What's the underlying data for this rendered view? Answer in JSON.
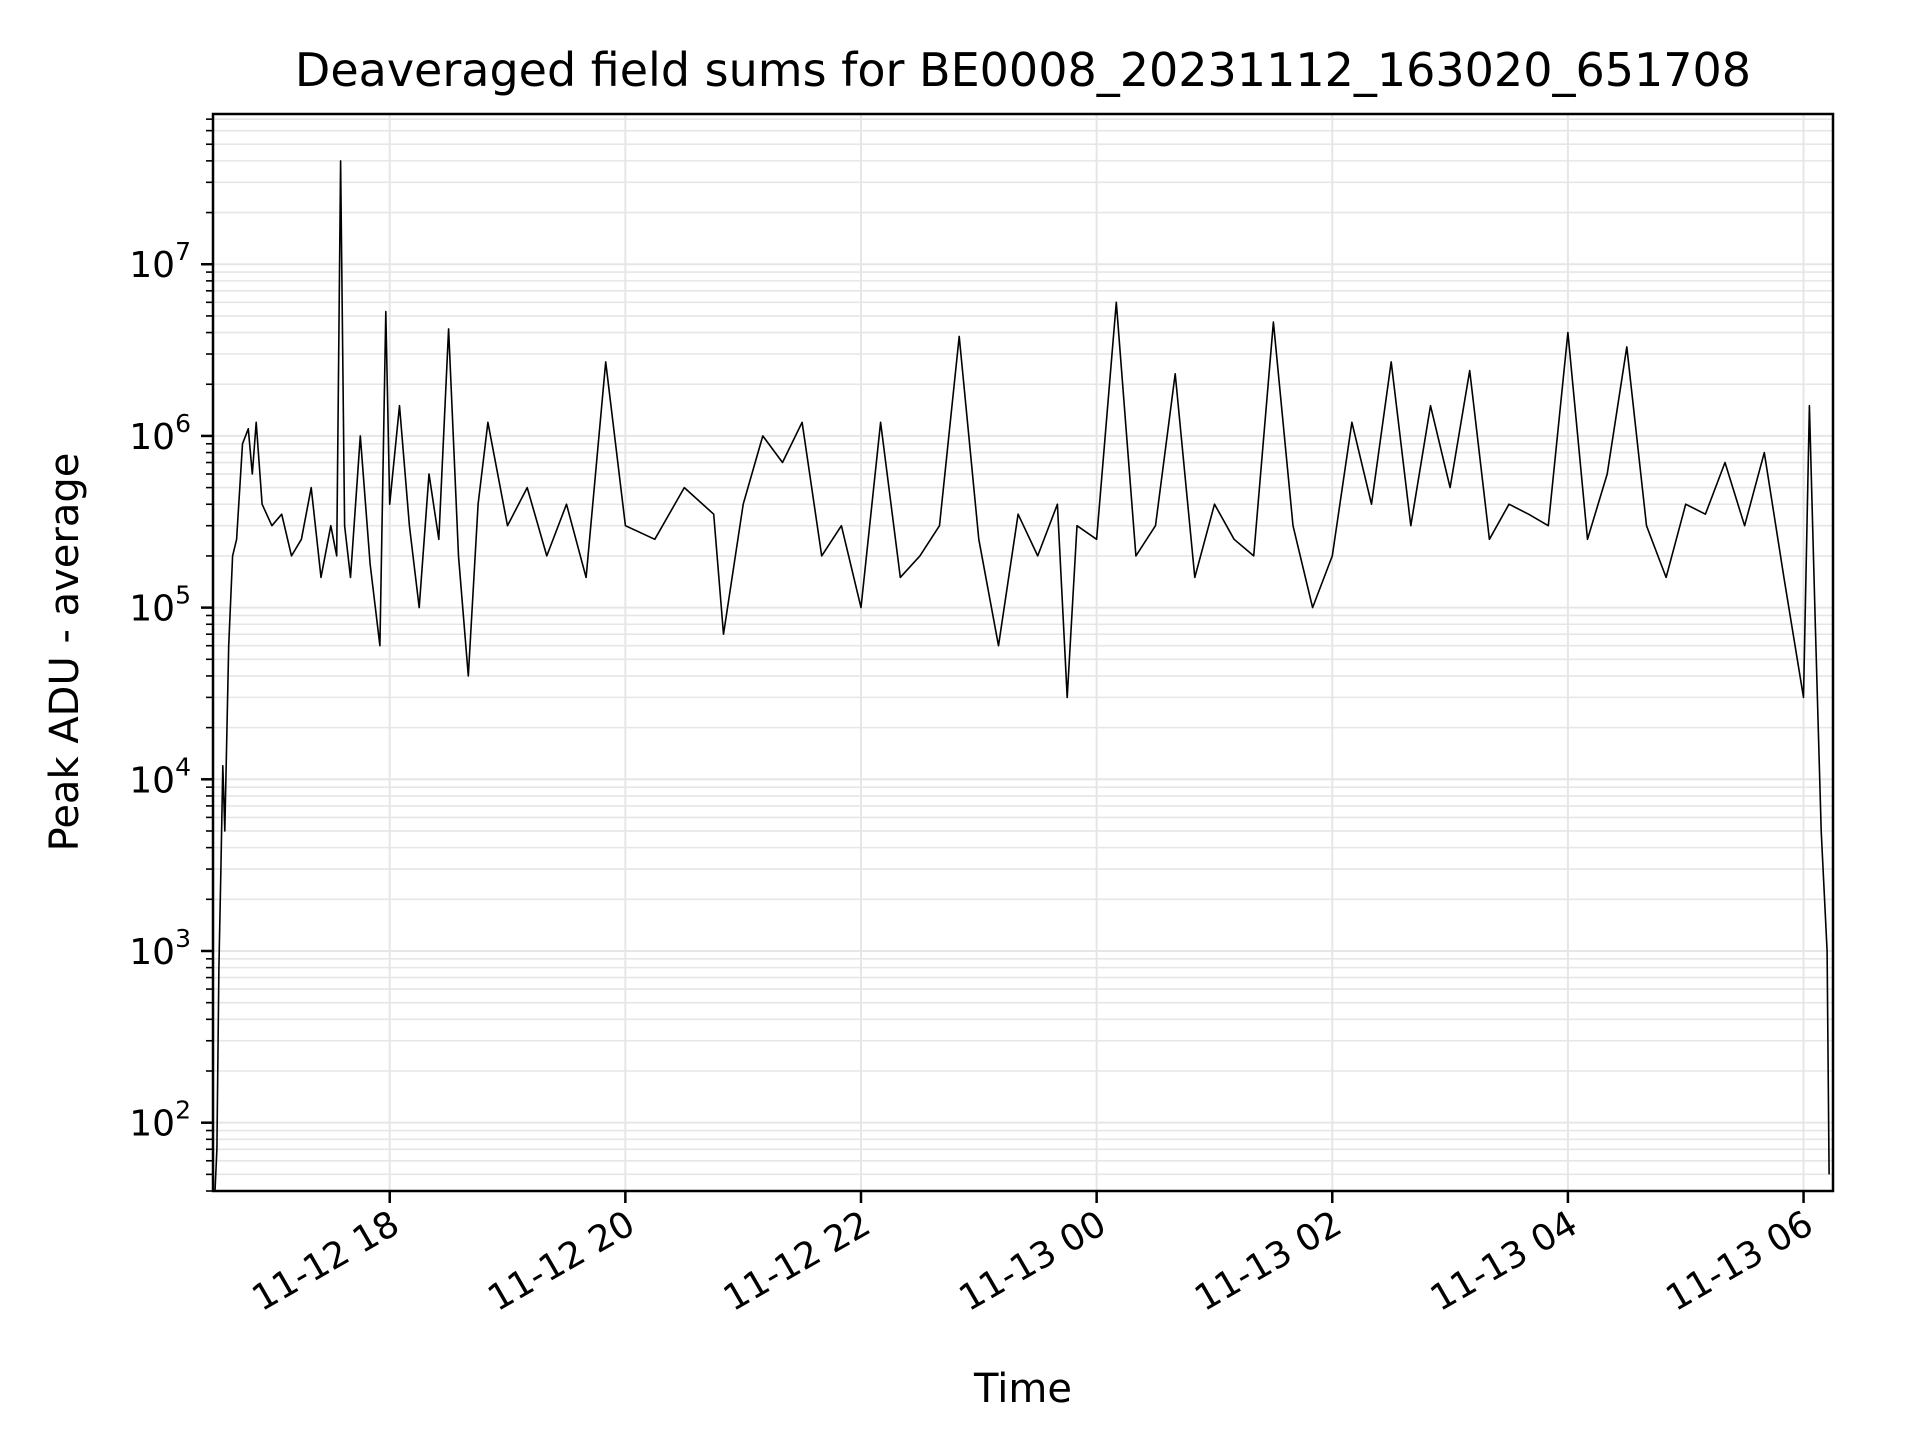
{
  "chart_data": {
    "type": "line",
    "title": "Deaveraged field sums for BE0008_20231112_163020_651708",
    "xlabel": "Time",
    "ylabel": "Peak ADU - average",
    "yscale": "log",
    "ylim": [
      40,
      75000000
    ],
    "xlim": [
      "2023-11-12 16:30",
      "2023-11-13 06:15"
    ],
    "grid": true,
    "colors": {
      "line": "#000000",
      "grid": "#e6e6e6",
      "axes": "#000000"
    },
    "x_ticks": [
      {
        "label": "11-12 18",
        "value": "2023-11-12 18:00"
      },
      {
        "label": "11-12 20",
        "value": "2023-11-12 20:00"
      },
      {
        "label": "11-12 22",
        "value": "2023-11-12 22:00"
      },
      {
        "label": "11-13 00",
        "value": "2023-11-13 00:00"
      },
      {
        "label": "11-13 02",
        "value": "2023-11-13 02:00"
      },
      {
        "label": "11-13 04",
        "value": "2023-11-13 04:00"
      },
      {
        "label": "11-13 06",
        "value": "2023-11-13 06:00"
      }
    ],
    "y_ticks": [
      {
        "base": "10",
        "exp": "2",
        "value": 100
      },
      {
        "base": "10",
        "exp": "3",
        "value": 1000
      },
      {
        "base": "10",
        "exp": "4",
        "value": 10000
      },
      {
        "base": "10",
        "exp": "5",
        "value": 100000
      },
      {
        "base": "10",
        "exp": "6",
        "value": 1000000
      },
      {
        "base": "10",
        "exp": "7",
        "value": 10000000
      }
    ],
    "series": [
      {
        "color": "#000000",
        "points": [
          [
            "2023-11-12 16:31",
            40
          ],
          [
            "2023-11-12 16:32",
            70
          ],
          [
            "2023-11-12 16:33",
            800
          ],
          [
            "2023-11-12 16:34",
            3000
          ],
          [
            "2023-11-12 16:35",
            12000
          ],
          [
            "2023-11-12 16:36",
            5000
          ],
          [
            "2023-11-12 16:38",
            60000
          ],
          [
            "2023-11-12 16:40",
            200000
          ],
          [
            "2023-11-12 16:42",
            250000
          ],
          [
            "2023-11-12 16:45",
            900000
          ],
          [
            "2023-11-12 16:48",
            1100000
          ],
          [
            "2023-11-12 16:50",
            600000
          ],
          [
            "2023-11-12 16:52",
            1200000
          ],
          [
            "2023-11-12 16:55",
            400000
          ],
          [
            "2023-11-12 17:00",
            300000
          ],
          [
            "2023-11-12 17:05",
            350000
          ],
          [
            "2023-11-12 17:10",
            200000
          ],
          [
            "2023-11-12 17:15",
            250000
          ],
          [
            "2023-11-12 17:20",
            500000
          ],
          [
            "2023-11-12 17:25",
            150000
          ],
          [
            "2023-11-12 17:30",
            300000
          ],
          [
            "2023-11-12 17:33",
            200000
          ],
          [
            "2023-11-12 17:35",
            40000000
          ],
          [
            "2023-11-12 17:37",
            300000
          ],
          [
            "2023-11-12 17:40",
            150000
          ],
          [
            "2023-11-12 17:45",
            1000000
          ],
          [
            "2023-11-12 17:50",
            180000
          ],
          [
            "2023-11-12 17:55",
            60000
          ],
          [
            "2023-11-12 17:58",
            5300000
          ],
          [
            "2023-11-12 18:00",
            400000
          ],
          [
            "2023-11-12 18:05",
            1500000
          ],
          [
            "2023-11-12 18:10",
            300000
          ],
          [
            "2023-11-12 18:15",
            100000
          ],
          [
            "2023-11-12 18:20",
            600000
          ],
          [
            "2023-11-12 18:25",
            250000
          ],
          [
            "2023-11-12 18:30",
            4200000
          ],
          [
            "2023-11-12 18:35",
            200000
          ],
          [
            "2023-11-12 18:40",
            40000
          ],
          [
            "2023-11-12 18:45",
            400000
          ],
          [
            "2023-11-12 18:50",
            1200000
          ],
          [
            "2023-11-12 19:00",
            300000
          ],
          [
            "2023-11-12 19:10",
            500000
          ],
          [
            "2023-11-12 19:20",
            200000
          ],
          [
            "2023-11-12 19:30",
            400000
          ],
          [
            "2023-11-12 19:40",
            150000
          ],
          [
            "2023-11-12 19:50",
            2700000
          ],
          [
            "2023-11-12 20:00",
            300000
          ],
          [
            "2023-11-12 20:15",
            250000
          ],
          [
            "2023-11-12 20:30",
            500000
          ],
          [
            "2023-11-12 20:45",
            350000
          ],
          [
            "2023-11-12 20:50",
            70000
          ],
          [
            "2023-11-12 21:00",
            400000
          ],
          [
            "2023-11-12 21:10",
            1000000
          ],
          [
            "2023-11-12 21:20",
            700000
          ],
          [
            "2023-11-12 21:30",
            1200000
          ],
          [
            "2023-11-12 21:40",
            200000
          ],
          [
            "2023-11-12 21:50",
            300000
          ],
          [
            "2023-11-12 22:00",
            100000
          ],
          [
            "2023-11-12 22:10",
            1200000
          ],
          [
            "2023-11-12 22:20",
            150000
          ],
          [
            "2023-11-12 22:30",
            200000
          ],
          [
            "2023-11-12 22:40",
            300000
          ],
          [
            "2023-11-12 22:50",
            3800000
          ],
          [
            "2023-11-12 23:00",
            250000
          ],
          [
            "2023-11-12 23:10",
            60000
          ],
          [
            "2023-11-12 23:20",
            350000
          ],
          [
            "2023-11-12 23:30",
            200000
          ],
          [
            "2023-11-12 23:40",
            400000
          ],
          [
            "2023-11-12 23:45",
            30000
          ],
          [
            "2023-11-12 23:50",
            300000
          ],
          [
            "2023-11-13 00:00",
            250000
          ],
          [
            "2023-11-13 00:10",
            6000000
          ],
          [
            "2023-11-13 00:20",
            200000
          ],
          [
            "2023-11-13 00:30",
            300000
          ],
          [
            "2023-11-13 00:40",
            2300000
          ],
          [
            "2023-11-13 00:50",
            150000
          ],
          [
            "2023-11-13 01:00",
            400000
          ],
          [
            "2023-11-13 01:10",
            250000
          ],
          [
            "2023-11-13 01:20",
            200000
          ],
          [
            "2023-11-13 01:30",
            4600000
          ],
          [
            "2023-11-13 01:40",
            300000
          ],
          [
            "2023-11-13 01:50",
            100000
          ],
          [
            "2023-11-13 02:00",
            200000
          ],
          [
            "2023-11-13 02:10",
            1200000
          ],
          [
            "2023-11-13 02:20",
            400000
          ],
          [
            "2023-11-13 02:30",
            2700000
          ],
          [
            "2023-11-13 02:40",
            300000
          ],
          [
            "2023-11-13 02:50",
            1500000
          ],
          [
            "2023-11-13 03:00",
            500000
          ],
          [
            "2023-11-13 03:10",
            2400000
          ],
          [
            "2023-11-13 03:20",
            250000
          ],
          [
            "2023-11-13 03:30",
            400000
          ],
          [
            "2023-11-13 03:40",
            350000
          ],
          [
            "2023-11-13 03:50",
            300000
          ],
          [
            "2023-11-13 04:00",
            4000000
          ],
          [
            "2023-11-13 04:10",
            250000
          ],
          [
            "2023-11-13 04:20",
            600000
          ],
          [
            "2023-11-13 04:30",
            3300000
          ],
          [
            "2023-11-13 04:40",
            300000
          ],
          [
            "2023-11-13 04:50",
            150000
          ],
          [
            "2023-11-13 05:00",
            400000
          ],
          [
            "2023-11-13 05:10",
            350000
          ],
          [
            "2023-11-13 05:20",
            700000
          ],
          [
            "2023-11-13 05:30",
            300000
          ],
          [
            "2023-11-13 05:40",
            800000
          ],
          [
            "2023-11-13 05:50",
            150000
          ],
          [
            "2023-11-13 06:00",
            30000
          ],
          [
            "2023-11-13 06:03",
            1500000
          ],
          [
            "2023-11-13 06:06",
            80000
          ],
          [
            "2023-11-13 06:09",
            5000
          ],
          [
            "2023-11-13 06:12",
            1000
          ],
          [
            "2023-11-13 06:13",
            50
          ]
        ]
      }
    ]
  }
}
